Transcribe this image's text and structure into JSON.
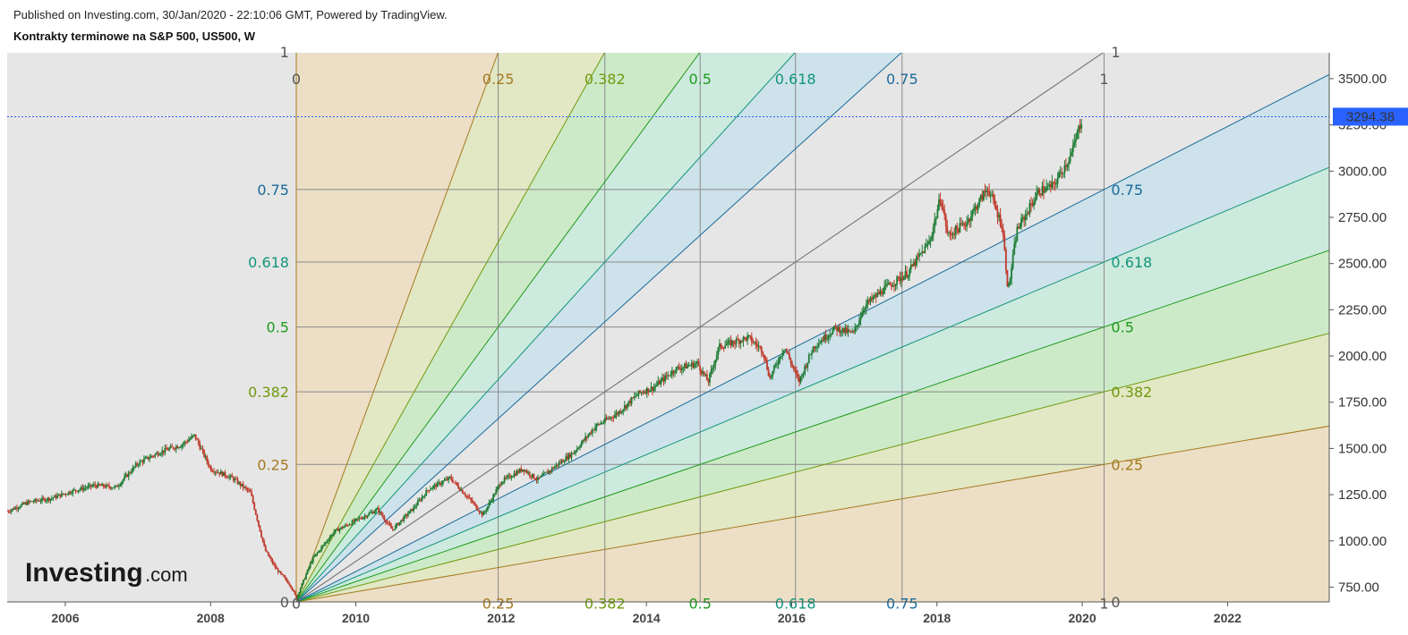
{
  "header": {
    "published": "Published on Investing.com, 30/Jan/2020 - 22:10:06 GMT, Powered by TradingView.",
    "title": "Kontrakty terminowe na S&P 500, US500, W"
  },
  "logo": {
    "brand": "Investing",
    "suffix": ".com"
  },
  "price_tag": {
    "label": "3294.38",
    "color": "#2962ff"
  },
  "colors": {
    "plot_bg": "#e6e6e6",
    "candle_up": "#1e7b33",
    "candle_down": "#c0392b",
    "fan": {
      "0": "#a57a20",
      "0.25": "#a57a20",
      "0.382": "#6f9a0e",
      "0.5": "#1f9a1f",
      "0.618": "#12957a",
      "0.75": "#1a6a9a",
      "1": "#7a7a7a"
    },
    "fan_fill": {
      "0": "#ecdfc6",
      "0.25": "#e2e7c4",
      "0.382": "#cdeac8",
      "0.5": "#cdeade",
      "0.618": "#cde2ea",
      "0.75": "#e6e6e6"
    }
  },
  "chart_data": {
    "type": "candlestick",
    "title": "Kontrakty terminowe na S&P 500, US500, W",
    "last_price": 3294.38,
    "x_axis": {
      "ticks": [
        "2006",
        "2008",
        "2010",
        "2012",
        "2014",
        "2016",
        "2018",
        "2020",
        "2022"
      ],
      "range": [
        2005.2,
        2023.4
      ]
    },
    "y_axis": {
      "ticks": [
        "750.00",
        "1000.00",
        "1250.00",
        "1500.00",
        "1750.00",
        "2000.00",
        "2250.00",
        "2500.00",
        "2750.00",
        "3000.00",
        "3250.00",
        "3500.00"
      ],
      "range": [
        670,
        3640
      ]
    },
    "gann_fan": {
      "levels": [
        "0",
        "0.25",
        "0.382",
        "0.5",
        "0.618",
        "0.75",
        "1"
      ],
      "anchor": {
        "date": 2009.18,
        "price": 670
      },
      "end": {
        "date": 2020.3,
        "price": 3644
      }
    },
    "series": [
      {
        "x": [
          2005.2,
          2005.5,
          2005.8,
          2006.1,
          2006.4,
          2006.7,
          2007.0,
          2007.3,
          2007.6,
          2007.78,
          2008.0,
          2008.3,
          2008.55,
          2008.75,
          2008.9,
          2009.1,
          2009.18,
          2009.4,
          2009.7,
          2010.0,
          2010.3,
          2010.5,
          2010.8,
          2011.0,
          2011.3,
          2011.6,
          2011.75,
          2012.0,
          2012.3,
          2012.5,
          2012.8,
          2013.0,
          2013.3,
          2013.6,
          2013.9,
          2014.1,
          2014.4,
          2014.7,
          2014.85,
          2015.0,
          2015.4,
          2015.6,
          2015.7,
          2015.9,
          2016.1,
          2016.3,
          2016.6,
          2016.85,
          2017.0,
          2017.3,
          2017.6,
          2017.9,
          2018.05,
          2018.15,
          2018.4,
          2018.7,
          2018.9,
          2018.98,
          2019.1,
          2019.4,
          2019.6,
          2019.85,
          2020.0
        ],
        "y": [
          1160,
          1210,
          1230,
          1270,
          1300,
          1290,
          1420,
          1480,
          1520,
          1570,
          1390,
          1340,
          1260,
          950,
          850,
          760,
          690,
          900,
          1050,
          1110,
          1170,
          1060,
          1180,
          1280,
          1340,
          1210,
          1140,
          1320,
          1390,
          1330,
          1420,
          1480,
          1620,
          1690,
          1800,
          1830,
          1930,
          1960,
          1860,
          2050,
          2100,
          2030,
          1880,
          2050,
          1860,
          2050,
          2150,
          2120,
          2270,
          2370,
          2450,
          2620,
          2860,
          2650,
          2720,
          2910,
          2700,
          2350,
          2680,
          2890,
          2920,
          3090,
          3294.38
        ]
      }
    ]
  }
}
